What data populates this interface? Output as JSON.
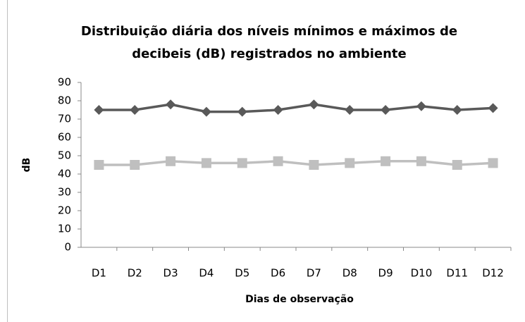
{
  "chart_data": {
    "type": "line",
    "title": [
      "Distribuição diária dos níveis mínimos e máximos de",
      "decibeis (dB) registrados no ambiente"
    ],
    "x_label": "Dias de observação",
    "y_label": "dB",
    "categories": [
      "D1",
      "D2",
      "D3",
      "D4",
      "D5",
      "D6",
      "D7",
      "D8",
      "D9",
      "D10",
      "D11",
      "D12"
    ],
    "series": [
      {
        "color": "#595959",
        "marker": "diamond",
        "values": [
          75,
          75,
          78,
          74,
          74,
          75,
          78,
          75,
          75,
          77,
          75,
          76
        ]
      },
      {
        "color": "#bfbfbf",
        "marker": "square",
        "values": [
          45,
          45,
          47,
          46,
          46,
          47,
          45,
          46,
          47,
          47,
          45,
          46
        ]
      }
    ],
    "ylim": [
      0,
      90
    ],
    "yticks": [
      0,
      10,
      20,
      30,
      40,
      50,
      60,
      70,
      80,
      90
    ],
    "grid": false
  }
}
